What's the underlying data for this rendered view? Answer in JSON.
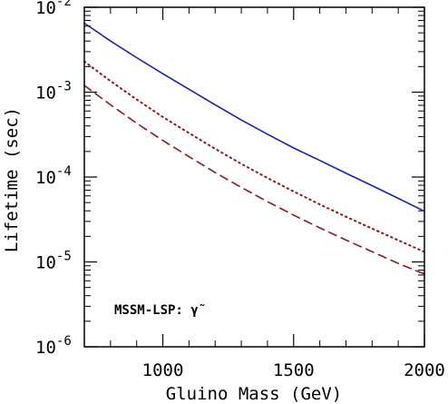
{
  "chart_data": {
    "type": "line",
    "xlabel": "Gluino Mass (GeV)",
    "ylabel": "Lifetime (sec)",
    "xlim": [
      700,
      2000
    ],
    "ylim": [
      1e-06,
      0.01
    ],
    "yscale": "log",
    "x_ticks": [
      {
        "value": 1000,
        "label": "1000"
      },
      {
        "value": 1500,
        "label": "1500"
      },
      {
        "value": 2000,
        "label": "2000"
      }
    ],
    "y_ticks": [
      {
        "value": 1e-06,
        "base": "10",
        "exp": "-6"
      },
      {
        "value": 1e-05,
        "base": "10",
        "exp": "-5"
      },
      {
        "value": 0.0001,
        "base": "10",
        "exp": "-4"
      },
      {
        "value": 0.001,
        "base": "10",
        "exp": "-3"
      },
      {
        "value": 0.01,
        "base": "10",
        "exp": "-2"
      }
    ],
    "annotation": "MSSM-LSP: γ̃",
    "grid": false,
    "series": [
      {
        "style": "solid",
        "color": "#1a23a8",
        "x": [
          700,
          800,
          900,
          1000,
          1100,
          1200,
          1300,
          1400,
          1500,
          1600,
          1700,
          1800,
          1900,
          2000
        ],
        "y": [
          0.0065,
          0.004,
          0.00255,
          0.00165,
          0.00108,
          0.00071,
          0.00047,
          0.00032,
          0.00022,
          0.000157,
          0.000111,
          7.91e-05,
          5.61e-05,
          3.95e-05
        ]
      },
      {
        "style": "dotted",
        "color": "#8b1a1a",
        "x": [
          700,
          800,
          900,
          1000,
          1100,
          1200,
          1300,
          1400,
          1500,
          1600,
          1700,
          1800,
          1900,
          2000
        ],
        "y": [
          0.0023,
          0.00135,
          0.00082,
          0.00051,
          0.00033,
          0.000215,
          0.000143,
          9.75e-05,
          6.76e-05,
          4.76e-05,
          3.41e-05,
          2.47e-05,
          1.8e-05,
          1.31e-05
        ]
      },
      {
        "style": "dashed",
        "color": "#8b1a1a",
        "x": [
          700,
          800,
          900,
          1000,
          1100,
          1200,
          1300,
          1400,
          1500,
          1600,
          1700,
          1800,
          1900,
          2000
        ],
        "y": [
          0.0012,
          0.00071,
          0.00043,
          0.00027,
          0.000174,
          0.000113,
          7.55e-05,
          5.13e-05,
          3.56e-05,
          2.52e-05,
          1.81e-05,
          1.32e-05,
          9.6e-06,
          7.2e-06
        ]
      }
    ]
  }
}
